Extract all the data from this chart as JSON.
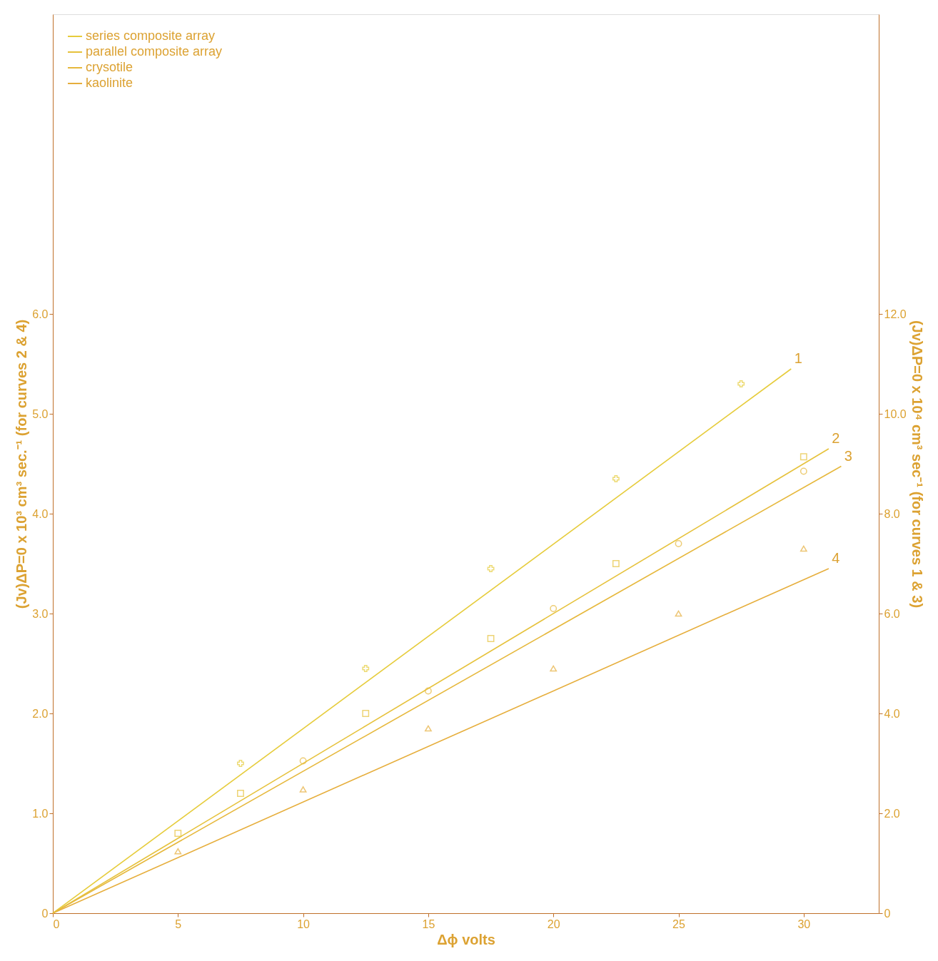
{
  "chart_data": {
    "type": "line",
    "xlabel": "Δϕ volts",
    "ylabel": "(Jv)ΔP=0 x 10³ cm³ sec.⁻¹ (for curves 2 & 4)",
    "y2label": "(Jv)ΔP=0 x 10⁴ cm³ sec⁻¹ (for curves 1 & 3)",
    "xlim": [
      0,
      33
    ],
    "ylim": [
      0,
      9
    ],
    "y2lim": [
      0,
      18
    ],
    "xticks": [
      0,
      5,
      10,
      15,
      20,
      25,
      30
    ],
    "yticks": [
      {
        "value": 0,
        "label": "0"
      },
      {
        "value": 1,
        "label": "1.0"
      },
      {
        "value": 2,
        "label": "2.0"
      },
      {
        "value": 3,
        "label": "3.0"
      },
      {
        "value": 4,
        "label": "4.0"
      },
      {
        "value": 5,
        "label": "5.0"
      },
      {
        "value": 6,
        "label": "6.0"
      }
    ],
    "y2ticks": [
      {
        "value": 0,
        "label": "0"
      },
      {
        "value": 2,
        "label": "2.0"
      },
      {
        "value": 4,
        "label": "4.0"
      },
      {
        "value": 6,
        "label": "6.0"
      },
      {
        "value": 8,
        "label": "8.0"
      },
      {
        "value": 10,
        "label": "10.0"
      },
      {
        "value": 12,
        "label": "12.0"
      }
    ],
    "grid": false,
    "legend": "top left",
    "series": [
      {
        "name": "series composite array",
        "axis": "y2",
        "color": "#e6cc3c",
        "marker": "none",
        "x": [
          0,
          29.5
        ],
        "values": [
          0,
          10.9
        ]
      },
      {
        "name": "parallel composite array",
        "color": "#e6c23c",
        "marker": "none",
        "x": [
          0,
          31
        ],
        "values": [
          0,
          4.65
        ]
      },
      {
        "name": "crysotile",
        "axis": "y2",
        "color": "#e6b83c",
        "marker": "none",
        "x": [
          0,
          31.5
        ],
        "values": [
          0,
          8.95
        ]
      },
      {
        "name": "kaolinite",
        "color": "#e6ae3c",
        "marker": "none",
        "x": [
          0,
          31
        ],
        "values": [
          0,
          3.45
        ]
      },
      {
        "type": "scatter",
        "axis": "y2",
        "color": "#e6cc3c",
        "marker": "cross",
        "x": [
          7.5,
          12.5,
          17.5,
          22.5,
          27.5
        ],
        "values": [
          3.0,
          4.9,
          6.9,
          8.7,
          10.6
        ]
      },
      {
        "type": "scatter",
        "color": "#e6c23c",
        "marker": "square",
        "x": [
          5,
          7.5,
          12.5,
          17.5,
          22.5,
          30
        ],
        "values": [
          0.8,
          1.2,
          2.0,
          2.75,
          3.5,
          4.57
        ]
      },
      {
        "type": "scatter",
        "axis": "y2",
        "color": "#e6b83c",
        "marker": "circle",
        "x": [
          10,
          15,
          20,
          25,
          30
        ],
        "values": [
          3.05,
          4.45,
          6.1,
          7.4,
          8.85
        ]
      },
      {
        "type": "scatter",
        "color": "#e6ae3c",
        "marker": "triangle",
        "x": [
          5,
          10,
          15,
          20,
          25,
          30
        ],
        "values": [
          0.62,
          1.24,
          1.85,
          2.45,
          3.0,
          3.65
        ]
      }
    ],
    "annotations": [
      "1",
      "2",
      "3",
      "4"
    ]
  }
}
